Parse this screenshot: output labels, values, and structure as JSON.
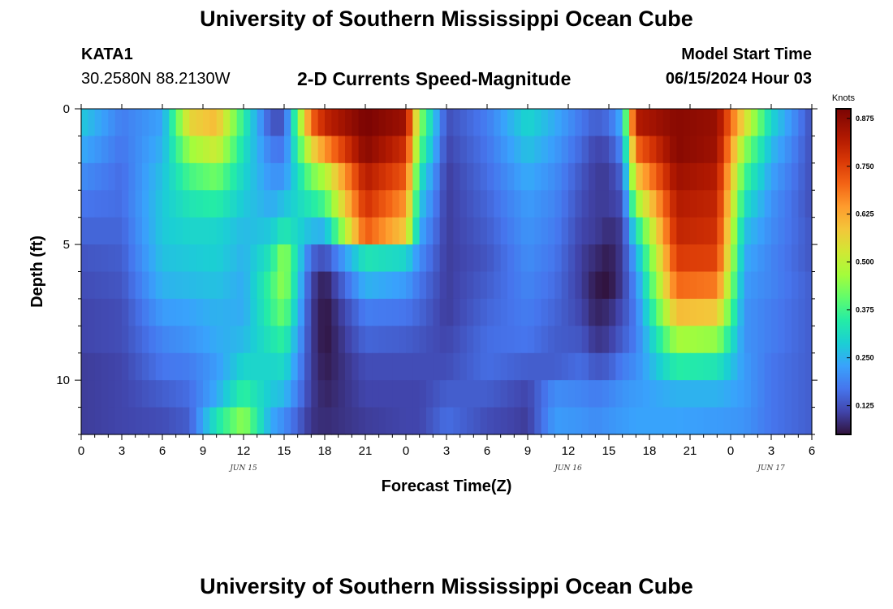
{
  "page": {
    "main_title": "University of Southern Mississippi Ocean Cube",
    "bottom_title": "University of Southern Mississippi Ocean Cube",
    "station_id": "KATA1",
    "station_coords": "30.2580N  88.2130W",
    "subtitle": "2-D Currents Speed-Magnitude",
    "model_start_label": "Model Start Time",
    "model_start_value": "06/15/2024 Hour 03"
  },
  "chart_data": {
    "type": "heatmap",
    "title": "2-D Currents Speed-Magnitude",
    "xlabel": "Forecast Time(Z)",
    "ylabel": "Depth (ft)",
    "x_range_hours": [
      0,
      54
    ],
    "y_range_ft": [
      0,
      12
    ],
    "x_tick_labels": [
      "0",
      "3",
      "6",
      "9",
      "12",
      "15",
      "18",
      "21",
      "0",
      "3",
      "6",
      "9",
      "12",
      "15",
      "18",
      "21",
      "0",
      "3",
      "6"
    ],
    "y_tick_labels": [
      "0",
      "5",
      "10"
    ],
    "y_tick_values": [
      0,
      5,
      10
    ],
    "date_labels": [
      {
        "label": "JUN 15",
        "hour": 12
      },
      {
        "label": "JUN 16",
        "hour": 36
      },
      {
        "label": "JUN 17",
        "hour": 51
      }
    ],
    "colorbar": {
      "unit": "Knots",
      "min": 0.05,
      "max": 0.9,
      "tick_labels": [
        "0.875",
        "0.750",
        "0.625",
        "0.500",
        "0.375",
        "0.250",
        "0.125"
      ],
      "tick_values": [
        0.875,
        0.75,
        0.625,
        0.5,
        0.375,
        0.25,
        0.125
      ]
    },
    "depth_layers_ft": [
      0.5,
      1.5,
      2.5,
      3.5,
      4.5,
      5.5,
      6.5,
      7.5,
      8.5,
      9.5,
      10.5,
      11.5
    ],
    "speed_profiles": [
      {
        "hour": 0,
        "values": [
          0.28,
          0.24,
          0.2,
          0.17,
          0.15,
          0.13,
          0.12,
          0.11,
          0.11,
          0.1,
          0.1,
          0.1
        ]
      },
      {
        "hour": 3,
        "values": [
          0.18,
          0.17,
          0.16,
          0.16,
          0.15,
          0.14,
          0.13,
          0.12,
          0.12,
          0.11,
          0.11,
          0.11
        ]
      },
      {
        "hour": 6,
        "values": [
          0.23,
          0.25,
          0.27,
          0.28,
          0.28,
          0.27,
          0.25,
          0.22,
          0.19,
          0.17,
          0.14,
          0.12
        ]
      },
      {
        "hour": 8,
        "values": [
          0.56,
          0.46,
          0.38,
          0.33,
          0.3,
          0.28,
          0.26,
          0.23,
          0.21,
          0.18,
          0.16,
          0.14
        ]
      },
      {
        "hour": 10,
        "values": [
          0.6,
          0.52,
          0.42,
          0.35,
          0.3,
          0.29,
          0.27,
          0.25,
          0.24,
          0.22,
          0.24,
          0.33
        ]
      },
      {
        "hour": 12,
        "values": [
          0.35,
          0.32,
          0.3,
          0.28,
          0.26,
          0.25,
          0.24,
          0.24,
          0.26,
          0.3,
          0.36,
          0.45
        ]
      },
      {
        "hour": 14,
        "values": [
          0.13,
          0.18,
          0.21,
          0.24,
          0.28,
          0.33,
          0.37,
          0.36,
          0.33,
          0.3,
          0.28,
          0.24
        ]
      },
      {
        "hour": 15,
        "values": [
          0.13,
          0.17,
          0.21,
          0.27,
          0.34,
          0.46,
          0.46,
          0.42,
          0.36,
          0.31,
          0.26,
          0.2
        ]
      },
      {
        "hour": 17,
        "values": [
          0.7,
          0.55,
          0.42,
          0.34,
          0.26,
          0.15,
          0.11,
          0.1,
          0.1,
          0.1,
          0.1,
          0.09
        ]
      },
      {
        "hour": 18,
        "values": [
          0.8,
          0.65,
          0.48,
          0.38,
          0.25,
          0.12,
          0.06,
          0.05,
          0.05,
          0.06,
          0.07,
          0.08
        ]
      },
      {
        "hour": 21,
        "values": [
          0.9,
          0.88,
          0.82,
          0.78,
          0.72,
          0.33,
          0.25,
          0.18,
          0.15,
          0.12,
          0.11,
          0.1
        ]
      },
      {
        "hour": 24,
        "values": [
          0.85,
          0.78,
          0.72,
          0.65,
          0.58,
          0.3,
          0.22,
          0.17,
          0.14,
          0.12,
          0.11,
          0.11
        ]
      },
      {
        "hour": 25,
        "values": [
          0.45,
          0.4,
          0.33,
          0.28,
          0.24,
          0.2,
          0.17,
          0.15,
          0.13,
          0.12,
          0.11,
          0.11
        ]
      },
      {
        "hour": 27,
        "values": [
          0.12,
          0.11,
          0.1,
          0.1,
          0.1,
          0.1,
          0.1,
          0.1,
          0.11,
          0.12,
          0.14,
          0.16
        ]
      },
      {
        "hour": 30,
        "values": [
          0.18,
          0.17,
          0.16,
          0.15,
          0.14,
          0.13,
          0.14,
          0.15,
          0.16,
          0.16,
          0.14,
          0.12
        ]
      },
      {
        "hour": 33,
        "values": [
          0.3,
          0.27,
          0.24,
          0.22,
          0.21,
          0.2,
          0.19,
          0.18,
          0.17,
          0.14,
          0.11,
          0.1
        ]
      },
      {
        "hour": 35,
        "values": [
          0.24,
          0.22,
          0.2,
          0.19,
          0.18,
          0.17,
          0.16,
          0.15,
          0.14,
          0.14,
          0.2,
          0.22
        ]
      },
      {
        "hour": 37,
        "values": [
          0.17,
          0.15,
          0.13,
          0.12,
          0.11,
          0.1,
          0.1,
          0.11,
          0.13,
          0.16,
          0.19,
          0.21
        ]
      },
      {
        "hour": 38,
        "values": [
          0.14,
          0.11,
          0.1,
          0.1,
          0.1,
          0.08,
          0.06,
          0.07,
          0.09,
          0.13,
          0.18,
          0.2
        ]
      },
      {
        "hour": 39,
        "values": [
          0.16,
          0.12,
          0.1,
          0.1,
          0.08,
          0.06,
          0.05,
          0.08,
          0.1,
          0.14,
          0.19,
          0.21
        ]
      },
      {
        "hour": 40,
        "values": [
          0.25,
          0.2,
          0.15,
          0.12,
          0.1,
          0.1,
          0.1,
          0.12,
          0.14,
          0.18,
          0.21,
          0.22
        ]
      },
      {
        "hour": 41,
        "values": [
          0.82,
          0.7,
          0.58,
          0.45,
          0.32,
          0.24,
          0.2,
          0.18,
          0.18,
          0.2,
          0.22,
          0.23
        ]
      },
      {
        "hour": 44,
        "values": [
          0.88,
          0.88,
          0.85,
          0.82,
          0.8,
          0.76,
          0.7,
          0.6,
          0.47,
          0.35,
          0.25,
          0.23
        ]
      },
      {
        "hour": 47,
        "values": [
          0.86,
          0.85,
          0.82,
          0.8,
          0.78,
          0.75,
          0.68,
          0.58,
          0.45,
          0.33,
          0.25,
          0.22
        ]
      },
      {
        "hour": 49,
        "values": [
          0.55,
          0.45,
          0.38,
          0.32,
          0.27,
          0.24,
          0.22,
          0.21,
          0.21,
          0.22,
          0.22,
          0.21
        ]
      },
      {
        "hour": 51,
        "values": [
          0.3,
          0.26,
          0.23,
          0.21,
          0.2,
          0.19,
          0.19,
          0.18,
          0.18,
          0.17,
          0.17,
          0.17
        ]
      },
      {
        "hour": 54,
        "values": [
          0.12,
          0.12,
          0.12,
          0.12,
          0.13,
          0.13,
          0.14,
          0.14,
          0.14,
          0.14,
          0.14,
          0.14
        ]
      }
    ]
  }
}
